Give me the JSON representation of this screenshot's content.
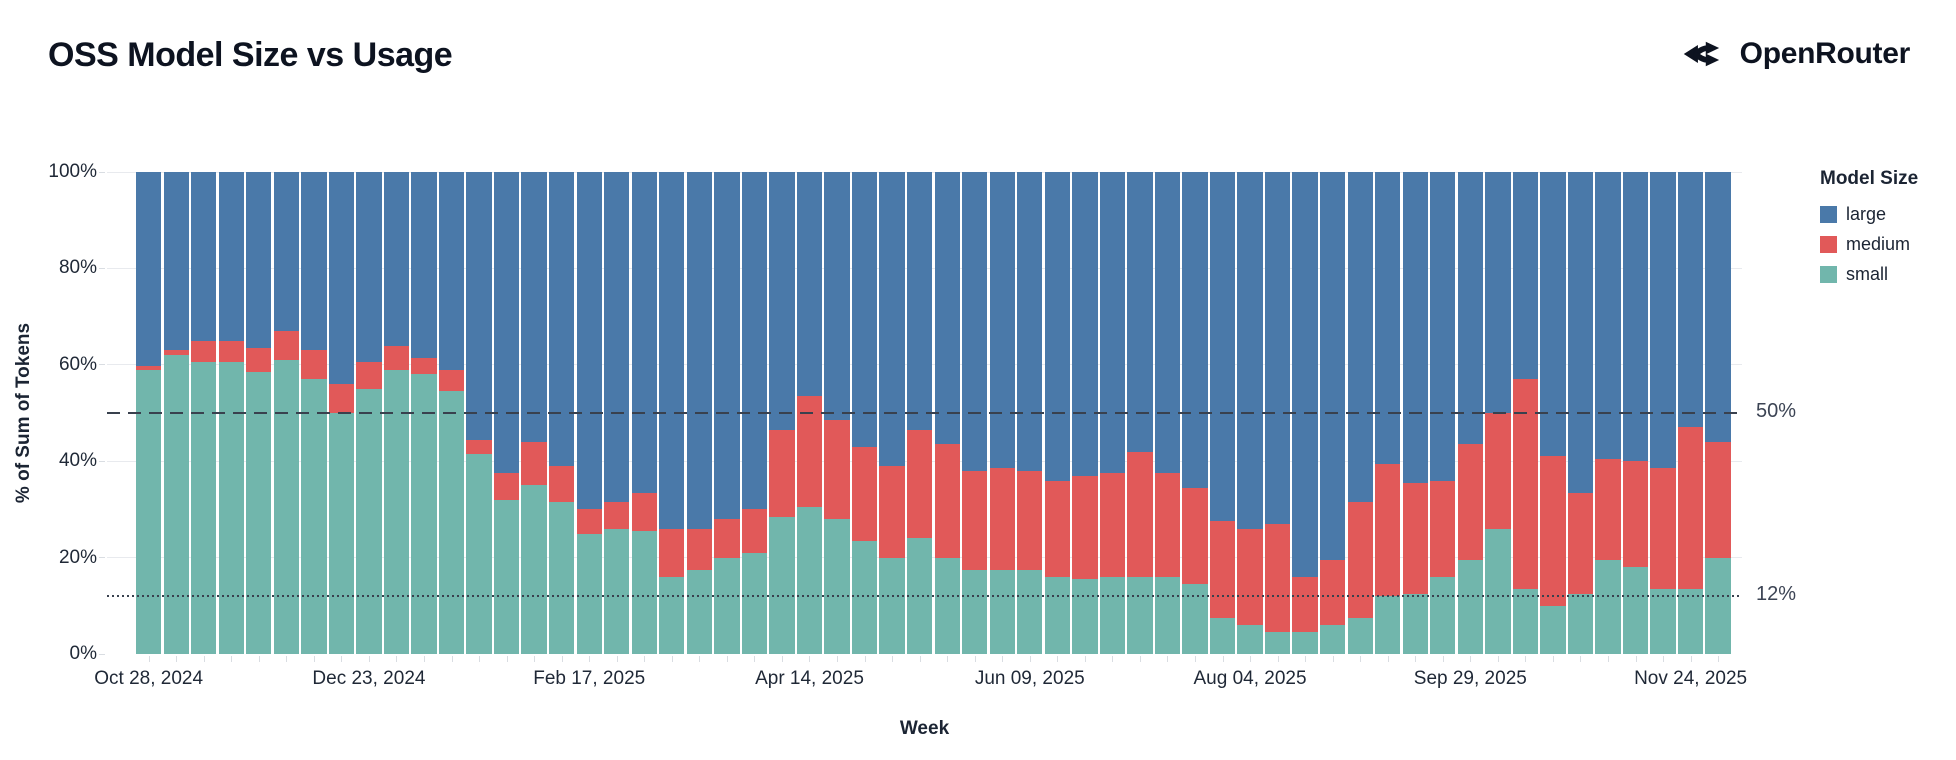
{
  "header": {
    "title": "OSS Model Size vs Usage",
    "brand": "OpenRouter"
  },
  "chart_data": {
    "type": "bar",
    "subtype": "100pct-stacked-weekly",
    "title": "OSS Model Size vs Usage",
    "xlabel": "Week",
    "ylabel": "% of Sum of Tokens",
    "ylim": [
      0,
      100
    ],
    "grid": true,
    "legend_position": "right",
    "y_ticks": [
      {
        "value": 0,
        "label": "0%"
      },
      {
        "value": 20,
        "label": "20%"
      },
      {
        "value": 40,
        "label": "40%"
      },
      {
        "value": 60,
        "label": "60%"
      },
      {
        "value": 80,
        "label": "80%"
      },
      {
        "value": 100,
        "label": "100%"
      }
    ],
    "x_tick_every": 8,
    "x_tick_labels": [
      "Oct 28, 2024",
      "Dec 23, 2024",
      "Feb 17, 2025",
      "Apr 14, 2025",
      "Jun 09, 2025",
      "Aug 04, 2025",
      "Sep 29, 2025",
      "Nov 24, 2025"
    ],
    "categories": [
      "Oct 28, 2024",
      "Nov 04, 2024",
      "Nov 11, 2024",
      "Nov 18, 2024",
      "Nov 25, 2024",
      "Dec 02, 2024",
      "Dec 09, 2024",
      "Dec 16, 2024",
      "Dec 23, 2024",
      "Dec 30, 2024",
      "Jan 06, 2025",
      "Jan 13, 2025",
      "Jan 20, 2025",
      "Jan 27, 2025",
      "Feb 03, 2025",
      "Feb 10, 2025",
      "Feb 17, 2025",
      "Feb 24, 2025",
      "Mar 03, 2025",
      "Mar 10, 2025",
      "Mar 17, 2025",
      "Mar 24, 2025",
      "Mar 31, 2025",
      "Apr 07, 2025",
      "Apr 14, 2025",
      "Apr 21, 2025",
      "Apr 28, 2025",
      "May 05, 2025",
      "May 12, 2025",
      "May 19, 2025",
      "May 26, 2025",
      "Jun 02, 2025",
      "Jun 09, 2025",
      "Jun 16, 2025",
      "Jun 23, 2025",
      "Jun 30, 2025",
      "Jul 07, 2025",
      "Jul 14, 2025",
      "Jul 21, 2025",
      "Jul 28, 2025",
      "Aug 04, 2025",
      "Aug 11, 2025",
      "Aug 18, 2025",
      "Aug 25, 2025",
      "Sep 01, 2025",
      "Sep 08, 2025",
      "Sep 15, 2025",
      "Sep 22, 2025",
      "Sep 29, 2025",
      "Oct 06, 2025",
      "Oct 13, 2025",
      "Oct 20, 2025",
      "Oct 27, 2025",
      "Nov 03, 2025",
      "Nov 10, 2025",
      "Nov 17, 2025",
      "Nov 24, 2025",
      "Dec 01, 2025"
    ],
    "series": [
      {
        "name": "small",
        "color": "#71b6ac",
        "values": [
          59,
          62,
          60.5,
          60.5,
          58.5,
          61,
          57,
          50,
          55,
          59,
          58,
          54.5,
          41.5,
          32,
          35,
          31.5,
          25,
          26,
          25.5,
          16,
          17.5,
          20,
          21,
          28.5,
          30.5,
          28,
          23.5,
          20,
          24,
          20,
          17.5,
          17.5,
          17.5,
          16,
          15.5,
          16,
          16,
          16,
          14.5,
          7.5,
          6,
          4.5,
          4.5,
          6,
          7.5,
          12,
          12.5,
          16,
          19.5,
          26,
          13.5,
          10,
          12.5,
          19.5,
          18,
          13.5,
          13.5,
          20
        ]
      },
      {
        "name": "medium",
        "color": "#e15959",
        "values": [
          0.7,
          1,
          4.5,
          4.5,
          5,
          6,
          6,
          6,
          5.5,
          5,
          3.5,
          4.5,
          3,
          5.5,
          9,
          7.5,
          5,
          5.5,
          8,
          10,
          8.5,
          8,
          9,
          18,
          23,
          20.5,
          19.5,
          19,
          22.5,
          23.5,
          20.5,
          21,
          20.5,
          20,
          21.5,
          21.5,
          26,
          21.5,
          20,
          20,
          20,
          22.5,
          11.5,
          13.5,
          24,
          27.5,
          23,
          20,
          24,
          24,
          43.5,
          31,
          21,
          21,
          22,
          25,
          33.5,
          24
        ]
      },
      {
        "name": "large",
        "color": "#4a79a9",
        "values": [
          40.3,
          37,
          35,
          35,
          36.5,
          33,
          37,
          44,
          39.5,
          36,
          38.5,
          41,
          55.5,
          62.5,
          56,
          61,
          70,
          68.5,
          66.5,
          74,
          74,
          72,
          70,
          53.5,
          46.5,
          51.5,
          57,
          61,
          53.5,
          56.5,
          62,
          61.5,
          62,
          64,
          63,
          62.5,
          58,
          62.5,
          65.5,
          72.5,
          74,
          73,
          84,
          80.5,
          68.5,
          60.5,
          64.5,
          64,
          56.5,
          50,
          43,
          59,
          66.5,
          59.5,
          60,
          61.5,
          53,
          56
        ]
      }
    ],
    "legend": {
      "title": "Model Size",
      "entries": [
        {
          "label": "large",
          "color": "#4a79a9"
        },
        {
          "label": "medium",
          "color": "#e15959"
        },
        {
          "label": "small",
          "color": "#71b6ac"
        }
      ]
    },
    "annotations": [
      {
        "label": "50%",
        "value": 50,
        "style": "dashed"
      },
      {
        "label": "12%",
        "value": 12,
        "style": "dotted"
      }
    ]
  }
}
